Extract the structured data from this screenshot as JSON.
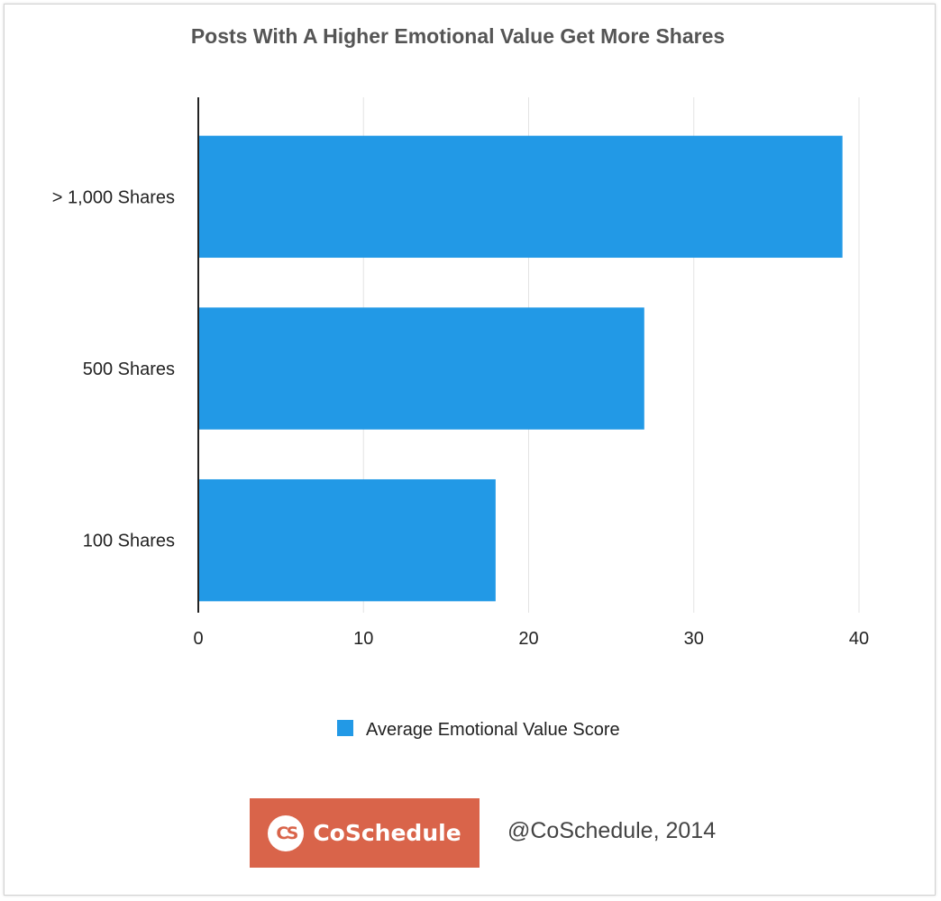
{
  "chart_data": {
    "type": "bar",
    "orientation": "horizontal",
    "title": "Posts With A Higher Emotional Value Get More Shares",
    "categories": [
      "> 1,000 Shares",
      "500 Shares",
      "100 Shares"
    ],
    "series": [
      {
        "name": "Average Emotional Value Score",
        "values": [
          39,
          27,
          18
        ],
        "color": "#2299e6"
      }
    ],
    "xlim": [
      0,
      40
    ],
    "xticks": [
      0,
      10,
      20,
      30,
      40
    ],
    "grid": true,
    "legend_position": "bottom"
  },
  "logo": {
    "mark": "CS",
    "wordmark": "CoSchedule",
    "background": "#d9644a",
    "mark_color": "#d9644a"
  },
  "credit": "@CoSchedule, 2014"
}
